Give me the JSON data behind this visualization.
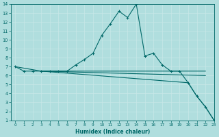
{
  "xlabel": "Humidex (Indice chaleur)",
  "xlim": [
    -0.5,
    23
  ],
  "ylim": [
    1,
    14
  ],
  "xticks": [
    0,
    1,
    2,
    3,
    4,
    5,
    6,
    7,
    8,
    9,
    10,
    11,
    12,
    13,
    14,
    15,
    16,
    17,
    18,
    19,
    20,
    21,
    22,
    23
  ],
  "yticks": [
    1,
    2,
    3,
    4,
    5,
    6,
    7,
    8,
    9,
    10,
    11,
    12,
    13,
    14
  ],
  "bg_color": "#b0dede",
  "grid_color": "#d0eaea",
  "line_color": "#006868",
  "line1_x": [
    0,
    1,
    2,
    3,
    4,
    5,
    6,
    7,
    8,
    9,
    10,
    11,
    12,
    13,
    14,
    15,
    16,
    17,
    18,
    19,
    20,
    21,
    22,
    23
  ],
  "line1_y": [
    7,
    6.5,
    6.5,
    6.5,
    6.5,
    6.5,
    6.5,
    7.2,
    7.8,
    8.5,
    10.5,
    11.8,
    13.2,
    12.5,
    14,
    8.2,
    8.5,
    7.2,
    6.5,
    6.5,
    5.2,
    3.7,
    2.5,
    1
  ],
  "line2_x": [
    0,
    3,
    22
  ],
  "line2_y": [
    7,
    6.5,
    6.5
  ],
  "line3_x": [
    3,
    22
  ],
  "line3_y": [
    6.5,
    6.0
  ],
  "line4_x": [
    3,
    20,
    21,
    22,
    23
  ],
  "line4_y": [
    6.5,
    5.2,
    3.7,
    2.5,
    1
  ]
}
